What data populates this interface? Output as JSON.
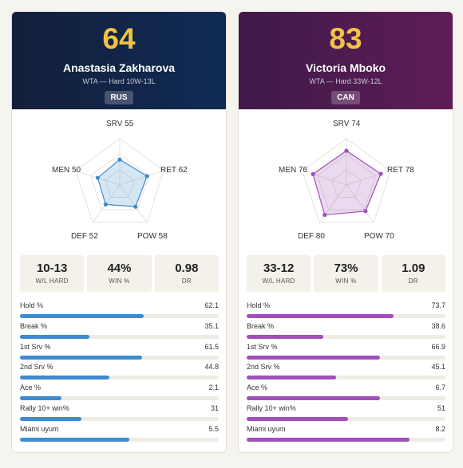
{
  "players": [
    {
      "rating": "64",
      "name": "Anastasia Zakharova",
      "subtitle": "WTA — Hard 10W-13L",
      "country": "RUS",
      "accent": "#3e8bd0",
      "radar": [
        {
          "label": "SRV 55",
          "value": 55
        },
        {
          "label": "RET 62",
          "value": 62
        },
        {
          "label": "POW 58",
          "value": 58
        },
        {
          "label": "DEF 52",
          "value": 52
        },
        {
          "label": "MEN 50",
          "value": 50
        }
      ],
      "boxes": [
        {
          "value": "10-13",
          "label": "W/L HARD"
        },
        {
          "value": "44%",
          "label": "WIN %"
        },
        {
          "value": "0.98",
          "label": "DR"
        }
      ],
      "stats": [
        {
          "label": "Hold %",
          "value": "62.1",
          "pct": 62.1
        },
        {
          "label": "Break %",
          "value": "35.1",
          "pct": 35.1
        },
        {
          "label": "1st Srv %",
          "value": "61.5",
          "pct": 61.5
        },
        {
          "label": "2nd Srv %",
          "value": "44.8",
          "pct": 44.8
        },
        {
          "label": "Ace %",
          "value": "2.1",
          "pct": 21
        },
        {
          "label": "Rally 10+ win%",
          "value": "31",
          "pct": 31
        },
        {
          "label": "Miami uyum",
          "value": "5.5",
          "pct": 55
        }
      ]
    },
    {
      "rating": "83",
      "name": "Victoria Mboko",
      "subtitle": "WTA — Hard 33W-12L",
      "country": "CAN",
      "accent": "#a050b8",
      "radar": [
        {
          "label": "SRV 74",
          "value": 74
        },
        {
          "label": "RET 78",
          "value": 78
        },
        {
          "label": "POW 70",
          "value": 70
        },
        {
          "label": "DEF 80",
          "value": 80
        },
        {
          "label": "MEN 76",
          "value": 76
        }
      ],
      "boxes": [
        {
          "value": "33-12",
          "label": "W/L HARD"
        },
        {
          "value": "73%",
          "label": "WIN %"
        },
        {
          "value": "1.09",
          "label": "DR"
        }
      ],
      "stats": [
        {
          "label": "Hold %",
          "value": "73.7",
          "pct": 73.7
        },
        {
          "label": "Break %",
          "value": "38.6",
          "pct": 38.6
        },
        {
          "label": "1st Srv %",
          "value": "66.9",
          "pct": 66.9
        },
        {
          "label": "2nd Srv %",
          "value": "45.1",
          "pct": 45.1
        },
        {
          "label": "Ace %",
          "value": "6.7",
          "pct": 67
        },
        {
          "label": "Rally 10+ win%",
          "value": "51",
          "pct": 51
        },
        {
          "label": "Miami uyum",
          "value": "8.2",
          "pct": 82
        }
      ]
    }
  ]
}
